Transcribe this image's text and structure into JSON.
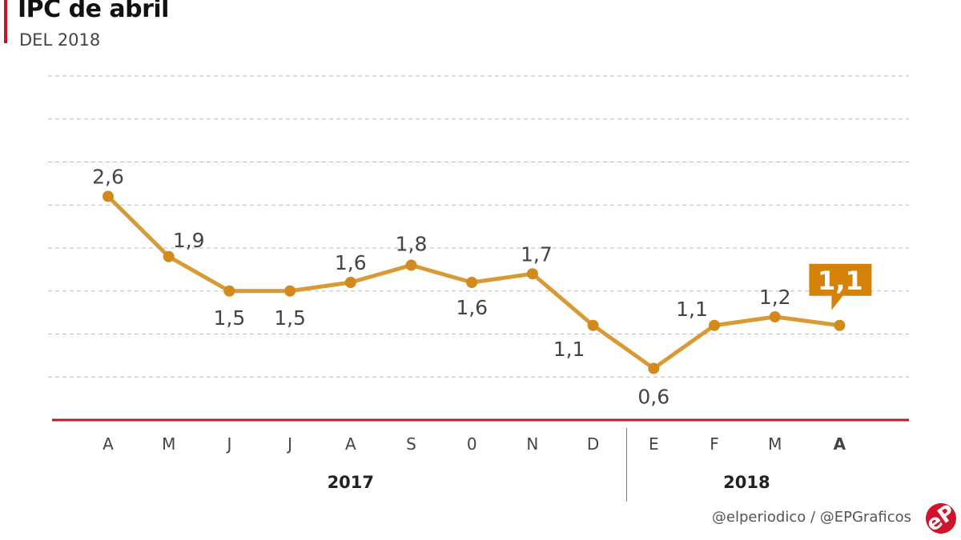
{
  "header": {
    "title": "IPC de abril",
    "subtitle": "DEL 2018"
  },
  "chart_data": {
    "type": "line",
    "title": "IPC de abril",
    "subtitle": "DEL 2018",
    "categories": [
      "A",
      "M",
      "J",
      "J",
      "A",
      "S",
      "0",
      "N",
      "D",
      "E",
      "F",
      "M",
      "A"
    ],
    "groups": [
      {
        "label": "2017",
        "from": 0,
        "to": 8
      },
      {
        "label": "2018",
        "from": 9,
        "to": 12
      }
    ],
    "values": [
      2.6,
      1.9,
      1.5,
      1.5,
      1.6,
      1.8,
      1.6,
      1.7,
      1.1,
      0.6,
      1.1,
      1.2,
      1.1
    ],
    "data_labels": [
      "2,6",
      "1,9",
      "1,5",
      "1,5",
      "1,6",
      "1,8",
      "1,6",
      "1,7",
      "1,1",
      "0,6",
      "1,1",
      "1,2",
      "1,1"
    ],
    "highlight_index": 12,
    "ylim": [
      0,
      4
    ],
    "grid": true,
    "grid_step": 0.5,
    "colors": {
      "line": "#d89a35",
      "point": "#d38a1c",
      "callout": "#d4820a",
      "axis": "#b81c2a",
      "grid": "#bbbbbb"
    }
  },
  "footer": {
    "credit": "@elperiodico / @EPGraficos",
    "logo_text": "eP"
  }
}
